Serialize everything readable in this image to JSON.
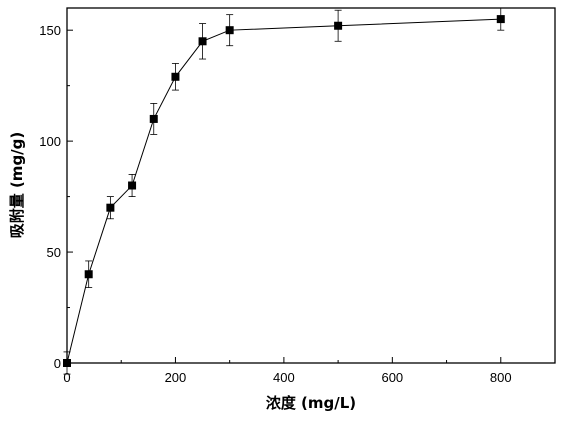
{
  "chart_data": {
    "type": "line",
    "xlabel": "浓度 (mg/L)",
    "ylabel": "吸附量 (mg/g)",
    "xlim": [
      0,
      900
    ],
    "ylim": [
      0,
      160
    ],
    "x_ticks": [
      0,
      200,
      400,
      600,
      800
    ],
    "y_ticks": [
      0,
      50,
      100,
      150
    ],
    "grid": false,
    "marker": "square",
    "line_color": "#000000",
    "series": [
      {
        "x": [
          0,
          40,
          80,
          120,
          160,
          200,
          250,
          300,
          500,
          800
        ],
        "y": [
          0,
          40,
          70,
          80,
          110,
          129,
          145,
          150,
          152,
          155
        ],
        "error": [
          5,
          6,
          5,
          5,
          7,
          6,
          8,
          7,
          7,
          5
        ]
      }
    ]
  }
}
